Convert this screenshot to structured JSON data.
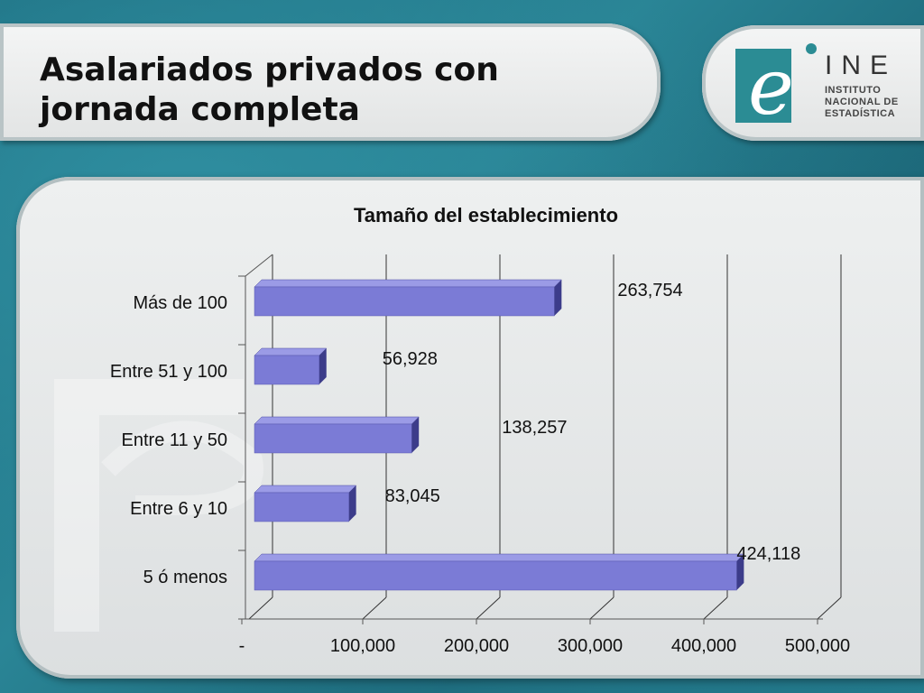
{
  "slide": {
    "title_line1": "Asalariados privados con",
    "title_line2": "jornada completa"
  },
  "logo": {
    "letter": "e",
    "name": "INE",
    "line1": "INSTITUTO",
    "line2": "NACIONAL DE",
    "line3": "ESTADÍSTICA"
  },
  "chart_data": {
    "type": "bar",
    "orientation": "horizontal",
    "title": "Tamaño del establecimiento",
    "categories": [
      "Más de 100",
      "Entre 51 y 100",
      "Entre 11 y 50",
      "Entre 6 y 10",
      "5 ó menos"
    ],
    "values": [
      263754,
      56928,
      138257,
      83045,
      424118
    ],
    "value_labels": [
      "263,754",
      "56,928",
      "138,257",
      "83,045",
      "424,118"
    ],
    "x_ticks": [
      "-",
      "100,000",
      "200,000",
      "300,000",
      "400,000",
      "500,000"
    ],
    "xlim": [
      0,
      500000
    ],
    "grid": true,
    "legend": "none",
    "bar_color": "#7b7bd6"
  }
}
